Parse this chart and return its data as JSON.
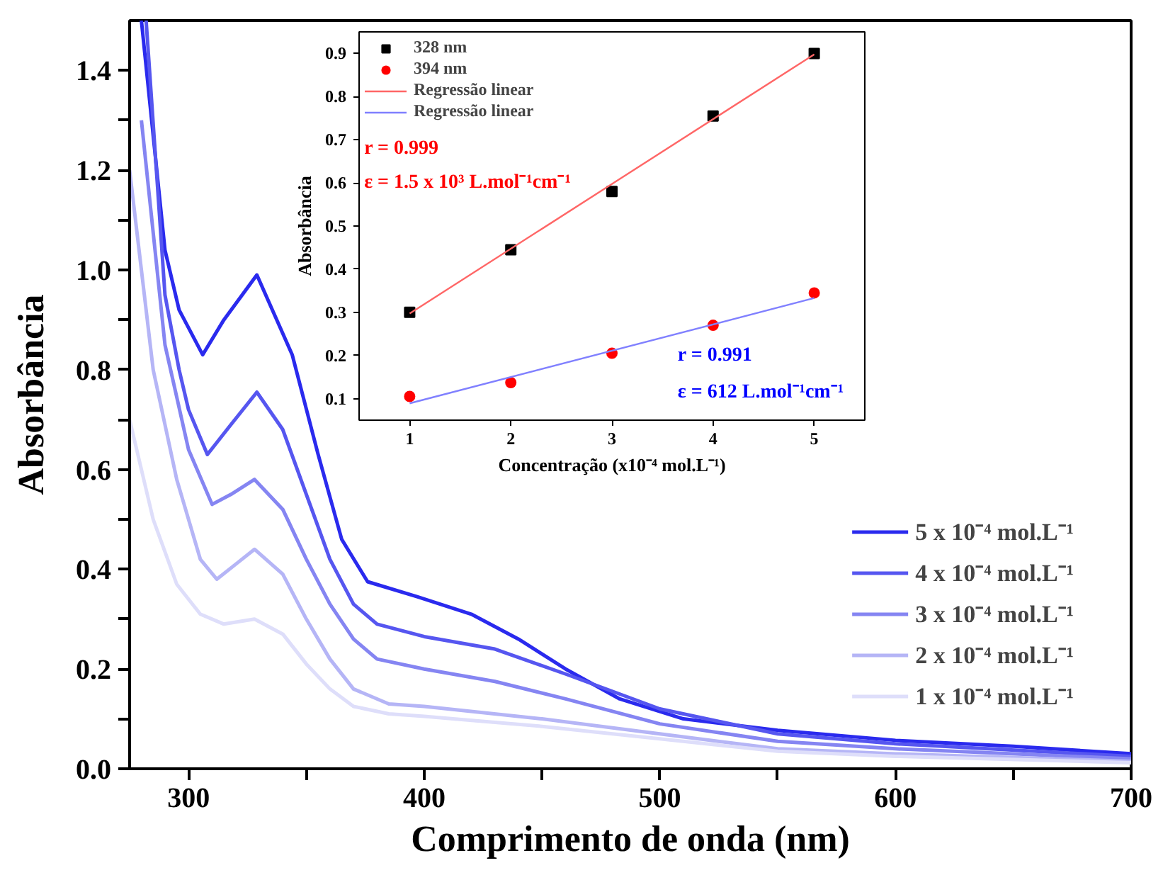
{
  "chart_data": [
    {
      "type": "line",
      "xlabel": "Comprimento de onda (nm)",
      "ylabel": "Absorbância",
      "xlim": [
        275,
        700
      ],
      "ylim": [
        0,
        1.5
      ],
      "xticks": [
        300,
        {
          "value": 350,
          "label": null
        },
        400,
        {
          "value": 450,
          "label": null
        },
        500,
        {
          "value": 550,
          "label": null
        },
        600,
        {
          "value": 650,
          "label": null
        },
        700
      ],
      "yticks": [
        "0.0",
        {
          "value": 0.1,
          "label": null
        },
        {
          "value": 0.2,
          "label": "0.2"
        },
        {
          "value": 0.3,
          "label": null
        },
        {
          "value": 0.4,
          "label": "0.4"
        },
        {
          "value": 0.5,
          "label": null
        },
        {
          "value": 0.6,
          "label": "0.6"
        },
        {
          "value": 0.7,
          "label": null
        },
        {
          "value": 0.8,
          "label": "0.8"
        },
        {
          "value": 0.9,
          "label": null
        },
        {
          "value": 1.0,
          "label": "1.0"
        },
        {
          "value": 1.1,
          "label": null
        },
        {
          "value": 1.2,
          "label": "1.2"
        },
        {
          "value": 1.3,
          "label": null
        },
        {
          "value": 1.4,
          "label": "1.4"
        }
      ],
      "grid": false,
      "legend": "bottom right",
      "line_style": "solid",
      "marker": "none",
      "series": [
        {
          "name": "5 x 10⁻⁴ mol.L⁻¹",
          "color": "#2a2aee",
          "x": [
            280,
            290,
            296,
            306,
            315,
            329,
            344,
            355,
            365,
            376,
            397,
            420,
            440,
            460,
            483,
            510,
            550,
            600,
            650,
            700
          ],
          "values": [
            1.5,
            1.04,
            0.92,
            0.83,
            0.9,
            0.99,
            0.83,
            0.63,
            0.46,
            0.375,
            0.345,
            0.31,
            0.26,
            0.2,
            0.14,
            0.1,
            0.077,
            0.057,
            0.045,
            0.03
          ]
        },
        {
          "name": "4 x 10⁻⁴ mol.L⁻¹",
          "color": "#5656f0",
          "x": [
            282,
            290,
            296,
            300,
            308,
            318,
            329,
            340,
            350,
            360,
            370,
            380,
            400,
            430,
            460,
            500,
            550,
            600,
            700
          ],
          "values": [
            1.5,
            0.95,
            0.8,
            0.72,
            0.63,
            0.69,
            0.755,
            0.68,
            0.55,
            0.42,
            0.33,
            0.29,
            0.265,
            0.24,
            0.19,
            0.12,
            0.07,
            0.05,
            0.025
          ]
        },
        {
          "name": "3 x 10⁻⁴ mol.L⁻¹",
          "color": "#8585f2",
          "x": [
            280,
            290,
            300,
            310,
            318,
            328,
            340,
            350,
            360,
            370,
            380,
            400,
            430,
            460,
            500,
            550,
            600,
            700
          ],
          "values": [
            1.3,
            0.85,
            0.64,
            0.53,
            0.55,
            0.58,
            0.52,
            0.42,
            0.33,
            0.26,
            0.22,
            0.2,
            0.175,
            0.14,
            0.09,
            0.055,
            0.04,
            0.02
          ]
        },
        {
          "name": "2 x 10⁻⁴ mol.L⁻¹",
          "color": "#b5b5f6",
          "x": [
            275,
            285,
            295,
            305,
            312,
            320,
            328,
            340,
            350,
            360,
            370,
            385,
            400,
            450,
            500,
            550,
            600,
            700
          ],
          "values": [
            1.2,
            0.8,
            0.58,
            0.42,
            0.38,
            0.41,
            0.44,
            0.39,
            0.3,
            0.22,
            0.16,
            0.13,
            0.125,
            0.1,
            0.07,
            0.04,
            0.03,
            0.015
          ]
        },
        {
          "name": "1 x 10⁻⁴ mol.L⁻¹",
          "color": "#dedefa",
          "x": [
            275,
            285,
            295,
            305,
            315,
            328,
            340,
            350,
            360,
            370,
            385,
            400,
            450,
            500,
            550,
            600,
            700
          ],
          "values": [
            0.7,
            0.5,
            0.37,
            0.31,
            0.29,
            0.3,
            0.27,
            0.21,
            0.16,
            0.125,
            0.11,
            0.105,
            0.085,
            0.06,
            0.035,
            0.025,
            0.012
          ]
        }
      ]
    },
    {
      "type": "scatter",
      "xlabel": "Concentração (x10⁻⁴ mol.L⁻¹)",
      "ylabel": "Absorbância",
      "xlim": [
        0.5,
        5.5
      ],
      "ylim": [
        0.05,
        0.95
      ],
      "xticks": [
        1,
        2,
        3,
        4,
        5
      ],
      "yticks": [
        0.1,
        0.2,
        0.3,
        0.4,
        0.5,
        0.6,
        0.7,
        0.8,
        0.9
      ],
      "grid": false,
      "legend": "top left",
      "annotations": [
        "r = 0.999",
        "ε = 1.5 x 10³ L.mol⁻¹cm⁻¹",
        "r = 0.991",
        "ε = 612 L.mol⁻¹cm⁻¹"
      ],
      "series": [
        {
          "name": "328 nm",
          "type": "scatter",
          "marker": "square",
          "color": "#000000",
          "x": [
            1,
            2,
            3,
            4,
            5
          ],
          "values": [
            0.3,
            0.445,
            0.58,
            0.755,
            0.9
          ]
        },
        {
          "name": "394 nm",
          "type": "scatter",
          "marker": "circle",
          "color": "#ff0000",
          "x": [
            1,
            2,
            3,
            4,
            5
          ],
          "values": [
            0.105,
            0.137,
            0.205,
            0.27,
            0.345
          ]
        },
        {
          "name": "Regressão linear",
          "type": "line",
          "color": "#ff6666",
          "x": [
            1,
            5
          ],
          "values": [
            0.297,
            0.898
          ]
        },
        {
          "name": "Regressão linear",
          "type": "line",
          "color": "#8080ff",
          "x": [
            1,
            5
          ],
          "values": [
            0.089,
            0.333
          ]
        }
      ]
    }
  ]
}
